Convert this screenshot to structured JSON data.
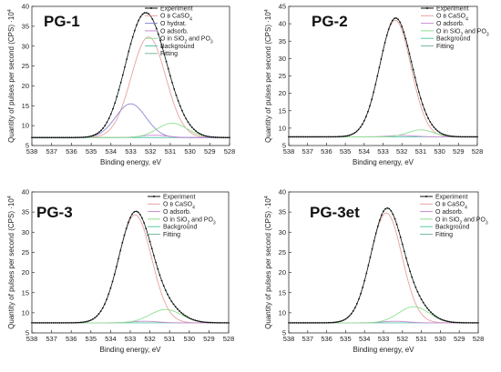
{
  "chart_data": [
    {
      "type": "line",
      "title": "PG-1",
      "xlabel": "Binding energy, eV",
      "ylabel": "Quantity of pulses per second  (CPS) ·10",
      "ylabel_sup": "4",
      "xlim": [
        538,
        528
      ],
      "ylim": [
        5,
        40
      ],
      "x_ticks": [
        "538",
        "537",
        "536",
        "535",
        "534",
        "533",
        "532",
        "531",
        "530",
        "529",
        "528"
      ],
      "y_ticks": [
        "5",
        "10",
        "15",
        "20",
        "25",
        "30",
        "35",
        "40"
      ],
      "legend": [
        "Experiment",
        "O в CaSO4",
        "O hydrat.",
        "O adsorb.",
        "O in SiO2 and PO3",
        "Background",
        "Fitting"
      ],
      "background": 7.0,
      "components": [
        {
          "name": "O в CaSO4",
          "color": "#e8a0a0",
          "center": 532.1,
          "height": 25.3,
          "fwhm": 2.05
        },
        {
          "name": "O hydrat.",
          "color": "#8a87d6",
          "center": 533.0,
          "height": 8.5,
          "fwhm": 1.8
        },
        {
          "name": "O adsorb.",
          "color": "#c98ad6",
          "center": 531.8,
          "height": 0.6,
          "fwhm": 1.6
        },
        {
          "name": "O in SiO2 and PO3",
          "color": "#8ee08e",
          "center": 530.9,
          "height": 3.6,
          "fwhm": 1.8
        }
      ],
      "fit_color": "#7ab8a4",
      "experiment_color": "#111111",
      "background_color": "#5ac8a8"
    },
    {
      "type": "line",
      "title": "PG-2",
      "xlabel": "Binding energy, eV",
      "ylabel": "Quantity of pulses per second  (CPS) ·10",
      "ylabel_sup": "4",
      "xlim": [
        538,
        528
      ],
      "ylim": [
        5,
        45
      ],
      "x_ticks": [
        "538",
        "537",
        "536",
        "535",
        "534",
        "533",
        "532",
        "531",
        "530",
        "529",
        "528"
      ],
      "y_ticks": [
        "5",
        "10",
        "15",
        "20",
        "25",
        "30",
        "35",
        "40",
        "45"
      ],
      "legend": [
        "Experiment",
        "O в CaSO4",
        "O adsorb.",
        "O in SiO2 and PO3",
        "Background",
        "Fitting"
      ],
      "background": 7.5,
      "components": [
        {
          "name": "O в CaSO4",
          "color": "#e8a0a0",
          "center": 532.35,
          "height": 33.5,
          "fwhm": 1.95
        },
        {
          "name": "O adsorb.",
          "color": "#c98ad6",
          "center": 532.0,
          "height": 0.4,
          "fwhm": 1.6
        },
        {
          "name": "O in SiO2 and PO3",
          "color": "#8ee08e",
          "center": 531.0,
          "height": 2.0,
          "fwhm": 1.6
        }
      ],
      "fit_color": "#7ab8a4",
      "experiment_color": "#111111",
      "background_color": "#5ac8a8"
    },
    {
      "type": "line",
      "title": "PG-3",
      "xlabel": "Binding energy, eV",
      "ylabel": "Quantity of pulses per second  (CPS) ·10",
      "ylabel_sup": "4",
      "xlim": [
        538,
        528
      ],
      "ylim": [
        5,
        40
      ],
      "x_ticks": [
        "538",
        "537",
        "536",
        "535",
        "534",
        "533",
        "532",
        "531",
        "530",
        "529",
        "528"
      ],
      "y_ticks": [
        "5",
        "10",
        "15",
        "20",
        "25",
        "30",
        "35",
        "40"
      ],
      "legend": [
        "Experiment",
        "O в CaSO4",
        "O adsorb.",
        "O in SiO2 and PO3",
        "Background",
        "Fitting"
      ],
      "background": 7.5,
      "components": [
        {
          "name": "O в CaSO4",
          "color": "#e8a0a0",
          "center": 532.75,
          "height": 26.8,
          "fwhm": 1.95
        },
        {
          "name": "O adsorb.",
          "color": "#c98ad6",
          "center": 532.3,
          "height": 0.4,
          "fwhm": 1.6
        },
        {
          "name": "O in SiO2 and PO3",
          "color": "#8ee08e",
          "center": 531.2,
          "height": 3.3,
          "fwhm": 1.9
        }
      ],
      "fit_color": "#7ab8a4",
      "experiment_color": "#111111",
      "background_color": "#5ac8a8"
    },
    {
      "type": "line",
      "title": "PG-3et",
      "xlabel": "Binding energy, eV",
      "ylabel": "Quantity of pulses per second  (CPS) ·10",
      "ylabel_sup": "4",
      "xlim": [
        538,
        528
      ],
      "ylim": [
        5,
        40
      ],
      "x_ticks": [
        "538",
        "537",
        "536",
        "535",
        "534",
        "533",
        "532",
        "531",
        "530",
        "529",
        "528"
      ],
      "y_ticks": [
        "5",
        "10",
        "15",
        "20",
        "25",
        "30",
        "35",
        "40"
      ],
      "legend": [
        "Experiment",
        "O в CaSO4",
        "O adsorb.",
        "O in SiO2 and PO3",
        "Background",
        "Fitting"
      ],
      "background": 7.5,
      "components": [
        {
          "name": "O в CaSO4",
          "color": "#e8a0a0",
          "center": 532.85,
          "height": 27.3,
          "fwhm": 1.95
        },
        {
          "name": "O adsorb.",
          "color": "#c98ad6",
          "center": 532.4,
          "height": 0.4,
          "fwhm": 1.6
        },
        {
          "name": "O in SiO2 and PO3",
          "color": "#8ee08e",
          "center": 531.4,
          "height": 4.0,
          "fwhm": 1.9
        }
      ],
      "fit_color": "#7ab8a4",
      "experiment_color": "#111111",
      "background_color": "#5ac8a8"
    }
  ]
}
